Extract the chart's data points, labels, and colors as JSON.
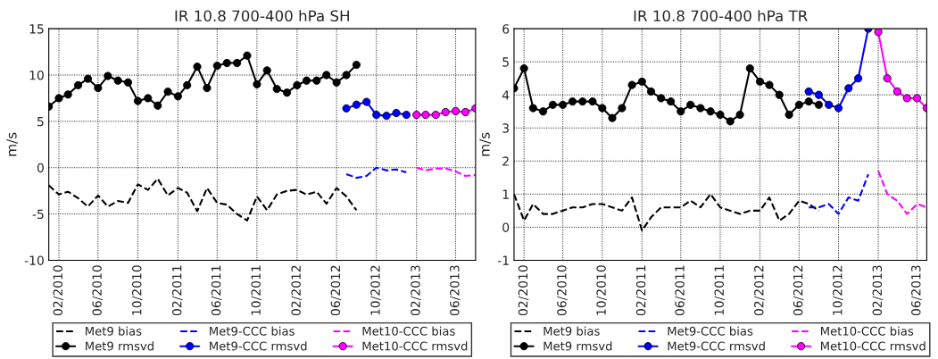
{
  "chart_data": [
    {
      "type": "line",
      "title": "IR 10.8 700-400 hPa SH",
      "ylabel": "m/s",
      "xlim": [
        "2010-01",
        "2013-08"
      ],
      "ylim": [
        -10,
        15
      ],
      "yticks": [
        -10,
        -5,
        0,
        5,
        10,
        15
      ],
      "xticks": [
        {
          "value": "2010-02",
          "label": "02/2010"
        },
        {
          "value": "2010-06",
          "label": "06/2010"
        },
        {
          "value": "2010-10",
          "label": "10/2010"
        },
        {
          "value": "2011-02",
          "label": "02/2011"
        },
        {
          "value": "2011-06",
          "label": "06/2011"
        },
        {
          "value": "2011-10",
          "label": "10/2011"
        },
        {
          "value": "2012-02",
          "label": "02/2012"
        },
        {
          "value": "2012-06",
          "label": "06/2012"
        },
        {
          "value": "2012-10",
          "label": "10/2012"
        },
        {
          "value": "2013-02",
          "label": "02/2013"
        },
        {
          "value": "2013-06",
          "label": "06/2013"
        }
      ],
      "grid": true,
      "legend": "bottom",
      "series": [
        {
          "name": "Met9 bias",
          "color": "#000000",
          "marker": "none",
          "line_style": "dashed",
          "x": [
            "2010-01",
            "2010-02",
            "2010-03",
            "2010-04",
            "2010-05",
            "2010-06",
            "2010-07",
            "2010-08",
            "2010-09",
            "2010-10",
            "2010-11",
            "2010-12",
            "2011-01",
            "2011-02",
            "2011-03",
            "2011-04",
            "2011-05",
            "2011-06",
            "2011-07",
            "2011-08",
            "2011-09",
            "2011-10",
            "2011-11",
            "2011-12",
            "2012-01",
            "2012-02",
            "2012-03",
            "2012-04",
            "2012-05",
            "2012-06",
            "2012-07",
            "2012-08"
          ],
          "values": [
            -1.9,
            -2.9,
            -2.6,
            -3.3,
            -4.2,
            -3.0,
            -4.2,
            -3.6,
            -3.8,
            -1.8,
            -2.4,
            -1.2,
            -3.0,
            -2.2,
            -2.7,
            -4.7,
            -2.2,
            -3.8,
            -4.0,
            -5.0,
            -5.7,
            -3.1,
            -4.6,
            -2.9,
            -2.5,
            -2.4,
            -2.9,
            -2.6,
            -3.9,
            -2.2,
            -3.1,
            -4.6
          ]
        },
        {
          "name": "Met9 rmsvd",
          "color": "#000000",
          "marker": "circle",
          "line_style": "solid",
          "x": [
            "2010-01",
            "2010-02",
            "2010-03",
            "2010-04",
            "2010-05",
            "2010-06",
            "2010-07",
            "2010-08",
            "2010-09",
            "2010-10",
            "2010-11",
            "2010-12",
            "2011-01",
            "2011-02",
            "2011-03",
            "2011-04",
            "2011-05",
            "2011-06",
            "2011-07",
            "2011-08",
            "2011-09",
            "2011-10",
            "2011-11",
            "2011-12",
            "2012-01",
            "2012-02",
            "2012-03",
            "2012-04",
            "2012-05",
            "2012-06",
            "2012-07",
            "2012-08"
          ],
          "values": [
            6.6,
            7.5,
            7.9,
            8.9,
            9.6,
            8.6,
            9.9,
            9.4,
            9.2,
            7.2,
            7.5,
            6.7,
            8.2,
            7.7,
            8.9,
            10.9,
            8.6,
            11.0,
            11.3,
            11.3,
            12.1,
            9.0,
            10.5,
            8.5,
            8.1,
            8.9,
            9.4,
            9.4,
            10.0,
            9.2,
            10.0,
            11.1
          ]
        },
        {
          "name": "Met9-CCC bias",
          "color": "#0000ff",
          "marker": "none",
          "line_style": "dashed",
          "x": [
            "2012-07",
            "2012-08",
            "2012-09",
            "2012-10",
            "2012-11",
            "2012-12",
            "2013-01"
          ],
          "values": [
            -0.7,
            -1.1,
            -0.9,
            0.0,
            -0.3,
            -0.2,
            -0.5
          ]
        },
        {
          "name": "Met9-CCC rmsvd",
          "color": "#0000ff",
          "marker": "circle",
          "line_style": "solid",
          "x": [
            "2012-07",
            "2012-08",
            "2012-09",
            "2012-10",
            "2012-11",
            "2012-12",
            "2013-01"
          ],
          "values": [
            6.4,
            6.8,
            7.1,
            5.7,
            5.6,
            5.9,
            5.7
          ]
        },
        {
          "name": "Met10-CCC bias",
          "color": "#ff00ff",
          "marker": "none",
          "line_style": "dashed",
          "x": [
            "2013-02",
            "2013-03",
            "2013-04",
            "2013-05",
            "2013-06",
            "2013-07",
            "2013-08"
          ],
          "values": [
            0.0,
            -0.3,
            -0.1,
            -0.1,
            -0.4,
            -0.9,
            -0.8
          ]
        },
        {
          "name": "Met10-CCC rmsvd",
          "color": "#ff00ff",
          "marker": "circle",
          "line_style": "solid",
          "x": [
            "2013-02",
            "2013-03",
            "2013-04",
            "2013-05",
            "2013-06",
            "2013-07",
            "2013-08"
          ],
          "values": [
            5.7,
            5.7,
            5.7,
            6.0,
            6.1,
            6.0,
            6.4
          ]
        }
      ]
    },
    {
      "type": "line",
      "title": "IR 10.8 700-400 hPa TR",
      "ylabel": "m/s",
      "xlim": [
        "2010-01",
        "2013-07"
      ],
      "ylim": [
        -1,
        6
      ],
      "yticks": [
        -1,
        0,
        1,
        2,
        3,
        4,
        5,
        6
      ],
      "xticks": [
        {
          "value": "2010-02",
          "label": "02/2010"
        },
        {
          "value": "2010-06",
          "label": "06/2010"
        },
        {
          "value": "2010-10",
          "label": "10/2010"
        },
        {
          "value": "2011-02",
          "label": "02/2011"
        },
        {
          "value": "2011-06",
          "label": "06/2011"
        },
        {
          "value": "2011-10",
          "label": "10/2011"
        },
        {
          "value": "2012-02",
          "label": "02/2012"
        },
        {
          "value": "2012-06",
          "label": "06/2012"
        },
        {
          "value": "2012-10",
          "label": "10/2012"
        },
        {
          "value": "2013-02",
          "label": "02/2013"
        },
        {
          "value": "2013-06",
          "label": "06/2013"
        }
      ],
      "grid": true,
      "legend": "bottom",
      "series": [
        {
          "name": "Met9 bias",
          "color": "#000000",
          "marker": "none",
          "line_style": "dashed",
          "x": [
            "2010-01",
            "2010-02",
            "2010-03",
            "2010-04",
            "2010-05",
            "2010-06",
            "2010-07",
            "2010-08",
            "2010-09",
            "2010-10",
            "2010-11",
            "2010-12",
            "2011-01",
            "2011-02",
            "2011-03",
            "2011-04",
            "2011-05",
            "2011-06",
            "2011-07",
            "2011-08",
            "2011-09",
            "2011-10",
            "2011-11",
            "2011-12",
            "2012-01",
            "2012-02",
            "2012-03",
            "2012-04",
            "2012-05",
            "2012-06",
            "2012-07",
            "2012-08"
          ],
          "values": [
            1.0,
            0.2,
            0.7,
            0.4,
            0.4,
            0.5,
            0.6,
            0.6,
            0.7,
            0.7,
            0.6,
            0.5,
            0.9,
            -0.1,
            0.3,
            0.6,
            0.6,
            0.6,
            0.8,
            0.6,
            1.0,
            0.6,
            0.5,
            0.4,
            0.5,
            0.5,
            0.9,
            0.2,
            0.4,
            0.8,
            0.7,
            0.5
          ]
        },
        {
          "name": "Met9 rmsvd",
          "color": "#000000",
          "marker": "circle",
          "line_style": "solid",
          "x": [
            "2010-01",
            "2010-02",
            "2010-03",
            "2010-04",
            "2010-05",
            "2010-06",
            "2010-07",
            "2010-08",
            "2010-09",
            "2010-10",
            "2010-11",
            "2010-12",
            "2011-01",
            "2011-02",
            "2011-03",
            "2011-04",
            "2011-05",
            "2011-06",
            "2011-07",
            "2011-08",
            "2011-09",
            "2011-10",
            "2011-11",
            "2011-12",
            "2012-01",
            "2012-02",
            "2012-03",
            "2012-04",
            "2012-05",
            "2012-06",
            "2012-07",
            "2012-08"
          ],
          "values": [
            4.2,
            4.8,
            3.6,
            3.5,
            3.7,
            3.7,
            3.8,
            3.8,
            3.8,
            3.6,
            3.3,
            3.6,
            4.3,
            4.4,
            4.1,
            3.9,
            3.8,
            3.5,
            3.7,
            3.6,
            3.5,
            3.4,
            3.2,
            3.4,
            4.8,
            4.4,
            4.3,
            4.0,
            3.4,
            3.7,
            3.8,
            3.7
          ]
        },
        {
          "name": "Met9-CCC bias",
          "color": "#0000ff",
          "marker": "none",
          "line_style": "dashed",
          "x": [
            "2012-07",
            "2012-08",
            "2012-09",
            "2012-10",
            "2012-11",
            "2012-12",
            "2013-01"
          ],
          "values": [
            0.6,
            0.6,
            0.7,
            0.4,
            0.9,
            0.8,
            1.6
          ]
        },
        {
          "name": "Met9-CCC rmsvd",
          "color": "#0000ff",
          "marker": "circle",
          "line_style": "solid",
          "x": [
            "2012-07",
            "2012-08",
            "2012-09",
            "2012-10",
            "2012-11",
            "2012-12",
            "2013-01"
          ],
          "values": [
            4.1,
            4.0,
            3.7,
            3.6,
            4.2,
            4.5,
            6.0
          ]
        },
        {
          "name": "Met10-CCC bias",
          "color": "#ff00ff",
          "marker": "none",
          "line_style": "dashed",
          "x": [
            "2013-02",
            "2013-03",
            "2013-04",
            "2013-05",
            "2013-06",
            "2013-07"
          ],
          "values": [
            1.7,
            1.0,
            0.8,
            0.4,
            0.7,
            0.6
          ]
        },
        {
          "name": "Met10-CCC rmsvd",
          "color": "#ff00ff",
          "marker": "circle",
          "line_style": "solid",
          "x": [
            "2013-02",
            "2013-03",
            "2013-04",
            "2013-05",
            "2013-06",
            "2013-07"
          ],
          "values": [
            5.9,
            4.5,
            4.1,
            3.9,
            3.9,
            3.6
          ]
        }
      ]
    }
  ]
}
